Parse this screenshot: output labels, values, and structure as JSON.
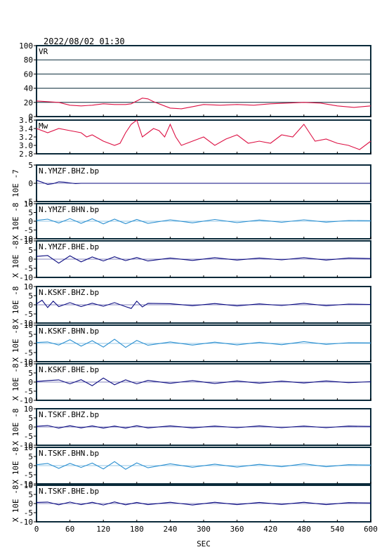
{
  "header": {
    "datetime": "2022/08/02 01:30"
  },
  "x_axis": {
    "label": "SEC",
    "ticks": [
      "0",
      "60",
      "120",
      "180",
      "240",
      "300",
      "360",
      "420",
      "480",
      "540",
      "600"
    ],
    "xlim": [
      0,
      600
    ]
  },
  "colors": {
    "frame": "#0a2a3a",
    "vr_mw": "#dd1144",
    "dark_trace": "#0a0a80",
    "light_trace": "#2a8fd0"
  },
  "chart_data": [
    {
      "type": "line",
      "title": "VR",
      "ylim": [
        0,
        100
      ],
      "ytick_labels": [
        "0",
        "20",
        "40",
        "60",
        "80",
        "100"
      ],
      "series": [
        {
          "x": [
            0,
            20,
            40,
            60,
            80,
            100,
            120,
            140,
            160,
            170,
            180,
            190,
            200,
            210,
            220,
            240,
            260,
            280,
            300,
            330,
            360,
            390,
            420,
            450,
            480,
            510,
            540,
            570,
            600
          ],
          "values": [
            22,
            21,
            20,
            16,
            15,
            16,
            18,
            17,
            17,
            18,
            22,
            26,
            25,
            21,
            18,
            12,
            11,
            14,
            17,
            16,
            17,
            16,
            18,
            19,
            20,
            19,
            15,
            13,
            15
          ]
        }
      ]
    },
    {
      "type": "line",
      "title": "Mw",
      "ylim": [
        2.8,
        3.6
      ],
      "ytick_labels": [
        "2.8",
        "3.0",
        "3.2",
        "3.4",
        "3.6"
      ],
      "series": [
        {
          "x": [
            0,
            20,
            40,
            60,
            80,
            90,
            100,
            120,
            140,
            150,
            160,
            170,
            180,
            190,
            200,
            210,
            220,
            230,
            240,
            250,
            260,
            280,
            300,
            320,
            340,
            360,
            380,
            400,
            420,
            440,
            460,
            480,
            490,
            500,
            520,
            540,
            560,
            580,
            600
          ],
          "values": [
            3.4,
            3.3,
            3.4,
            3.35,
            3.3,
            3.2,
            3.25,
            3.1,
            3.0,
            3.05,
            3.3,
            3.5,
            3.6,
            3.2,
            3.3,
            3.4,
            3.35,
            3.2,
            3.5,
            3.2,
            3.0,
            3.1,
            3.2,
            3.0,
            3.15,
            3.25,
            3.05,
            3.1,
            3.05,
            3.25,
            3.2,
            3.5,
            3.3,
            3.1,
            3.15,
            3.05,
            3.0,
            2.9,
            3.1
          ]
        }
      ]
    },
    {
      "type": "line",
      "title": "N.YMZF.BHZ.bp",
      "ylabel": "10E -7",
      "ylim": [
        -5,
        5
      ],
      "ytick_labels": [
        "-5",
        "0",
        "5"
      ],
      "series": [
        {
          "x": [
            0,
            10,
            20,
            30,
            40,
            50,
            60,
            70,
            80,
            100,
            200,
            300,
            400,
            500,
            600
          ],
          "values": [
            0.8,
            0.3,
            -0.3,
            -0.1,
            0.4,
            0.3,
            0.1,
            -0.1,
            0,
            0,
            0,
            0,
            0,
            0,
            0
          ]
        }
      ]
    },
    {
      "type": "line",
      "title": "N.YMZF.BHN.bp",
      "ylabel": "X 10E -8",
      "ylim": [
        -10,
        10
      ],
      "ytick_labels": [
        "-10",
        "-5",
        "0",
        "5",
        "10"
      ],
      "series": [
        {
          "x": [
            0,
            20,
            40,
            60,
            80,
            100,
            120,
            140,
            160,
            180,
            200,
            240,
            280,
            320,
            360,
            400,
            440,
            480,
            520,
            560,
            600
          ],
          "values": [
            0.5,
            1.2,
            -1.0,
            1.5,
            -1.2,
            1.4,
            -1.5,
            1.2,
            -1.4,
            1.0,
            -1.2,
            0.8,
            -0.9,
            1.0,
            -0.8,
            0.7,
            -0.6,
            0.8,
            -0.5,
            0.4,
            0.3
          ]
        }
      ]
    },
    {
      "type": "line",
      "title": "N.YMZF.BHE.bp",
      "ylabel": "X 10E -8",
      "ylim": [
        -10,
        10
      ],
      "ytick_labels": [
        "-10",
        "-5",
        "0",
        "5",
        "10"
      ],
      "series": [
        {
          "x": [
            0,
            20,
            40,
            60,
            80,
            100,
            120,
            140,
            160,
            180,
            200,
            240,
            280,
            320,
            360,
            400,
            440,
            480,
            520,
            560,
            600
          ],
          "values": [
            1.5,
            2.0,
            -2.2,
            1.8,
            -1.5,
            1.2,
            -1.0,
            1.3,
            -0.8,
            0.9,
            -1.0,
            0.6,
            -0.7,
            0.8,
            -0.5,
            0.6,
            -0.4,
            0.8,
            -0.5,
            0.6,
            0.3
          ]
        }
      ]
    },
    {
      "type": "line",
      "title": "N.KSKF.BHZ.bp",
      "ylabel": "X 10E -8",
      "ylim": [
        -10,
        10
      ],
      "ytick_labels": [
        "-10",
        "-5",
        "0",
        "5",
        "10"
      ],
      "series": [
        {
          "x": [
            0,
            10,
            20,
            30,
            40,
            60,
            80,
            100,
            120,
            140,
            160,
            170,
            180,
            190,
            200,
            240,
            280,
            320,
            360,
            400,
            440,
            480,
            520,
            560,
            600
          ],
          "values": [
            0.5,
            2.5,
            -1.5,
            2.0,
            -1.0,
            1.2,
            -1.0,
            0.9,
            -0.8,
            1.2,
            -1.0,
            -2.0,
            2.0,
            -1.2,
            0.8,
            0.6,
            -0.5,
            0.7,
            -0.6,
            0.5,
            -0.4,
            0.8,
            -0.5,
            0.4,
            0.2
          ]
        }
      ]
    },
    {
      "type": "line",
      "title": "N.KSKF.BHN.bp",
      "ylabel": "X 10E -8",
      "ylim": [
        -10,
        10
      ],
      "ytick_labels": [
        "-10",
        "-5",
        "0",
        "5",
        "10"
      ],
      "series": [
        {
          "x": [
            0,
            20,
            40,
            60,
            80,
            100,
            120,
            140,
            160,
            180,
            200,
            240,
            280,
            320,
            360,
            400,
            440,
            480,
            520,
            560,
            600
          ],
          "values": [
            0.5,
            0.8,
            -0.9,
            2.0,
            -1.5,
            1.5,
            -2.0,
            2.3,
            -2.2,
            1.6,
            -1.0,
            0.8,
            -0.9,
            0.7,
            -0.8,
            0.6,
            -0.7,
            1.0,
            -0.5,
            0.4,
            0.3
          ]
        }
      ]
    },
    {
      "type": "line",
      "title": "N.KSKF.BHE.bp",
      "ylabel": "X 10E -8",
      "ylim": [
        -10,
        10
      ],
      "ytick_labels": [
        "-10",
        "-5",
        "0",
        "5",
        "10"
      ],
      "series": [
        {
          "x": [
            0,
            20,
            40,
            60,
            80,
            100,
            120,
            140,
            160,
            180,
            200,
            240,
            280,
            320,
            360,
            400,
            440,
            480,
            520,
            560,
            600
          ],
          "values": [
            0.3,
            0.8,
            1.2,
            -1.0,
            1.3,
            -2.0,
            2.2,
            -1.5,
            1.2,
            -1.0,
            0.9,
            -0.7,
            0.8,
            -0.8,
            0.6,
            -0.6,
            0.5,
            -0.5,
            0.6,
            -0.3,
            0.2
          ]
        }
      ]
    },
    {
      "type": "line",
      "title": "N.TSKF.BHZ.bp",
      "ylabel": "X 10E -8",
      "ylim": [
        -10,
        10
      ],
      "ytick_labels": [
        "-10",
        "-5",
        "0",
        "5",
        "10"
      ],
      "series": [
        {
          "x": [
            0,
            20,
            40,
            60,
            80,
            100,
            120,
            140,
            160,
            180,
            200,
            240,
            280,
            320,
            360,
            400,
            440,
            480,
            520,
            560,
            600
          ],
          "values": [
            0.4,
            0.8,
            -0.6,
            0.7,
            -0.5,
            0.6,
            -0.6,
            0.5,
            -0.6,
            0.7,
            -0.5,
            0.6,
            -0.5,
            0.5,
            -0.4,
            0.6,
            -0.4,
            0.5,
            -0.4,
            0.5,
            0.3
          ]
        }
      ]
    },
    {
      "type": "line",
      "title": "N.TSKF.BHN.bp",
      "ylabel": "X 10E -8",
      "ylim": [
        -10,
        10
      ],
      "ytick_labels": [
        "-10",
        "-5",
        "0",
        "5",
        "10"
      ],
      "series": [
        {
          "x": [
            0,
            20,
            40,
            60,
            80,
            100,
            120,
            140,
            160,
            180,
            200,
            240,
            280,
            320,
            360,
            400,
            440,
            480,
            520,
            560,
            600
          ],
          "values": [
            0.5,
            1.2,
            -1.5,
            1.2,
            -1.0,
            1.4,
            -1.8,
            2.2,
            -2.0,
            1.5,
            -1.2,
            1.0,
            -0.9,
            0.8,
            -0.8,
            0.7,
            -0.6,
            1.0,
            -0.6,
            0.5,
            0.3
          ]
        }
      ]
    },
    {
      "type": "line",
      "title": "N.TSKF.BHE.bp",
      "ylabel": "X 10E -8",
      "ylim": [
        -10,
        10
      ],
      "ytick_labels": [
        "-10",
        "-5",
        "0",
        "5",
        "10"
      ],
      "series": [
        {
          "x": [
            0,
            20,
            40,
            60,
            80,
            100,
            120,
            140,
            160,
            180,
            200,
            240,
            280,
            320,
            360,
            400,
            440,
            480,
            520,
            560,
            600
          ],
          "values": [
            0.6,
            0.8,
            -0.7,
            0.8,
            -0.6,
            0.7,
            -0.8,
            0.9,
            -0.7,
            0.6,
            -0.6,
            0.7,
            -0.8,
            0.7,
            -0.6,
            0.6,
            -0.5,
            0.7,
            -0.6,
            0.5,
            0.3
          ]
        }
      ]
    }
  ]
}
